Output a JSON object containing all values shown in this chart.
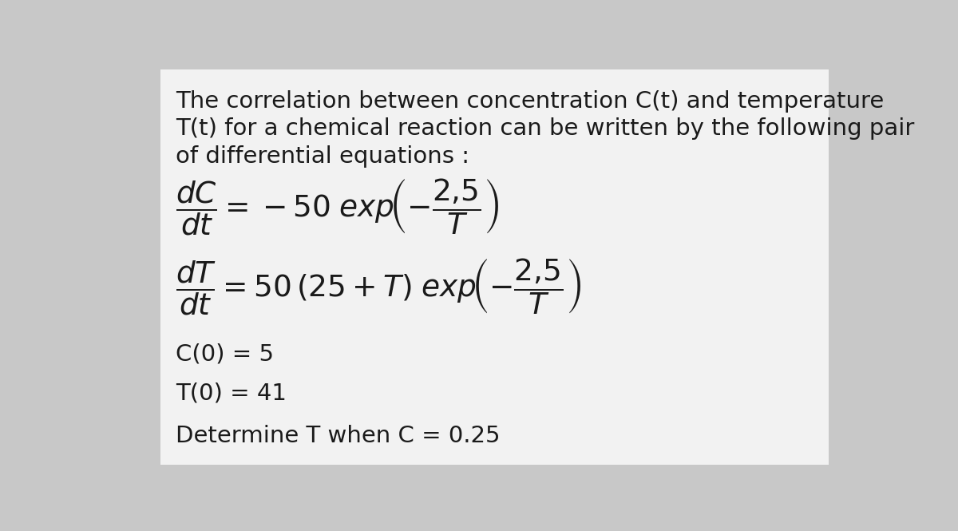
{
  "background_color": "#c8c8c8",
  "box_color": "#f2f2f2",
  "text_color": "#1a1a1a",
  "intro_line1": "The correlation between concentration C(t) and temperature",
  "intro_line2": "T(t) for a chemical reaction can be written by the following pair",
  "intro_line3": "of differential equations :",
  "eq1": "$\\dfrac{dC}{dt} = -50 \\; \\mathit{exp}\\!\\left(-\\dfrac{2{,}5}{T}\\right)$",
  "eq2": "$\\dfrac{dT}{dt} = 50\\,(25 + T)\\;\\mathit{exp}\\!\\left(-\\dfrac{2{,}5}{T}\\right)$",
  "ic1": "C(0) = 5",
  "ic2": "T(0) = 41",
  "question": "Determine T when C = 0.25",
  "intro_fontsize": 21,
  "eq_fontsize": 27,
  "ic_fontsize": 21,
  "q_fontsize": 21
}
